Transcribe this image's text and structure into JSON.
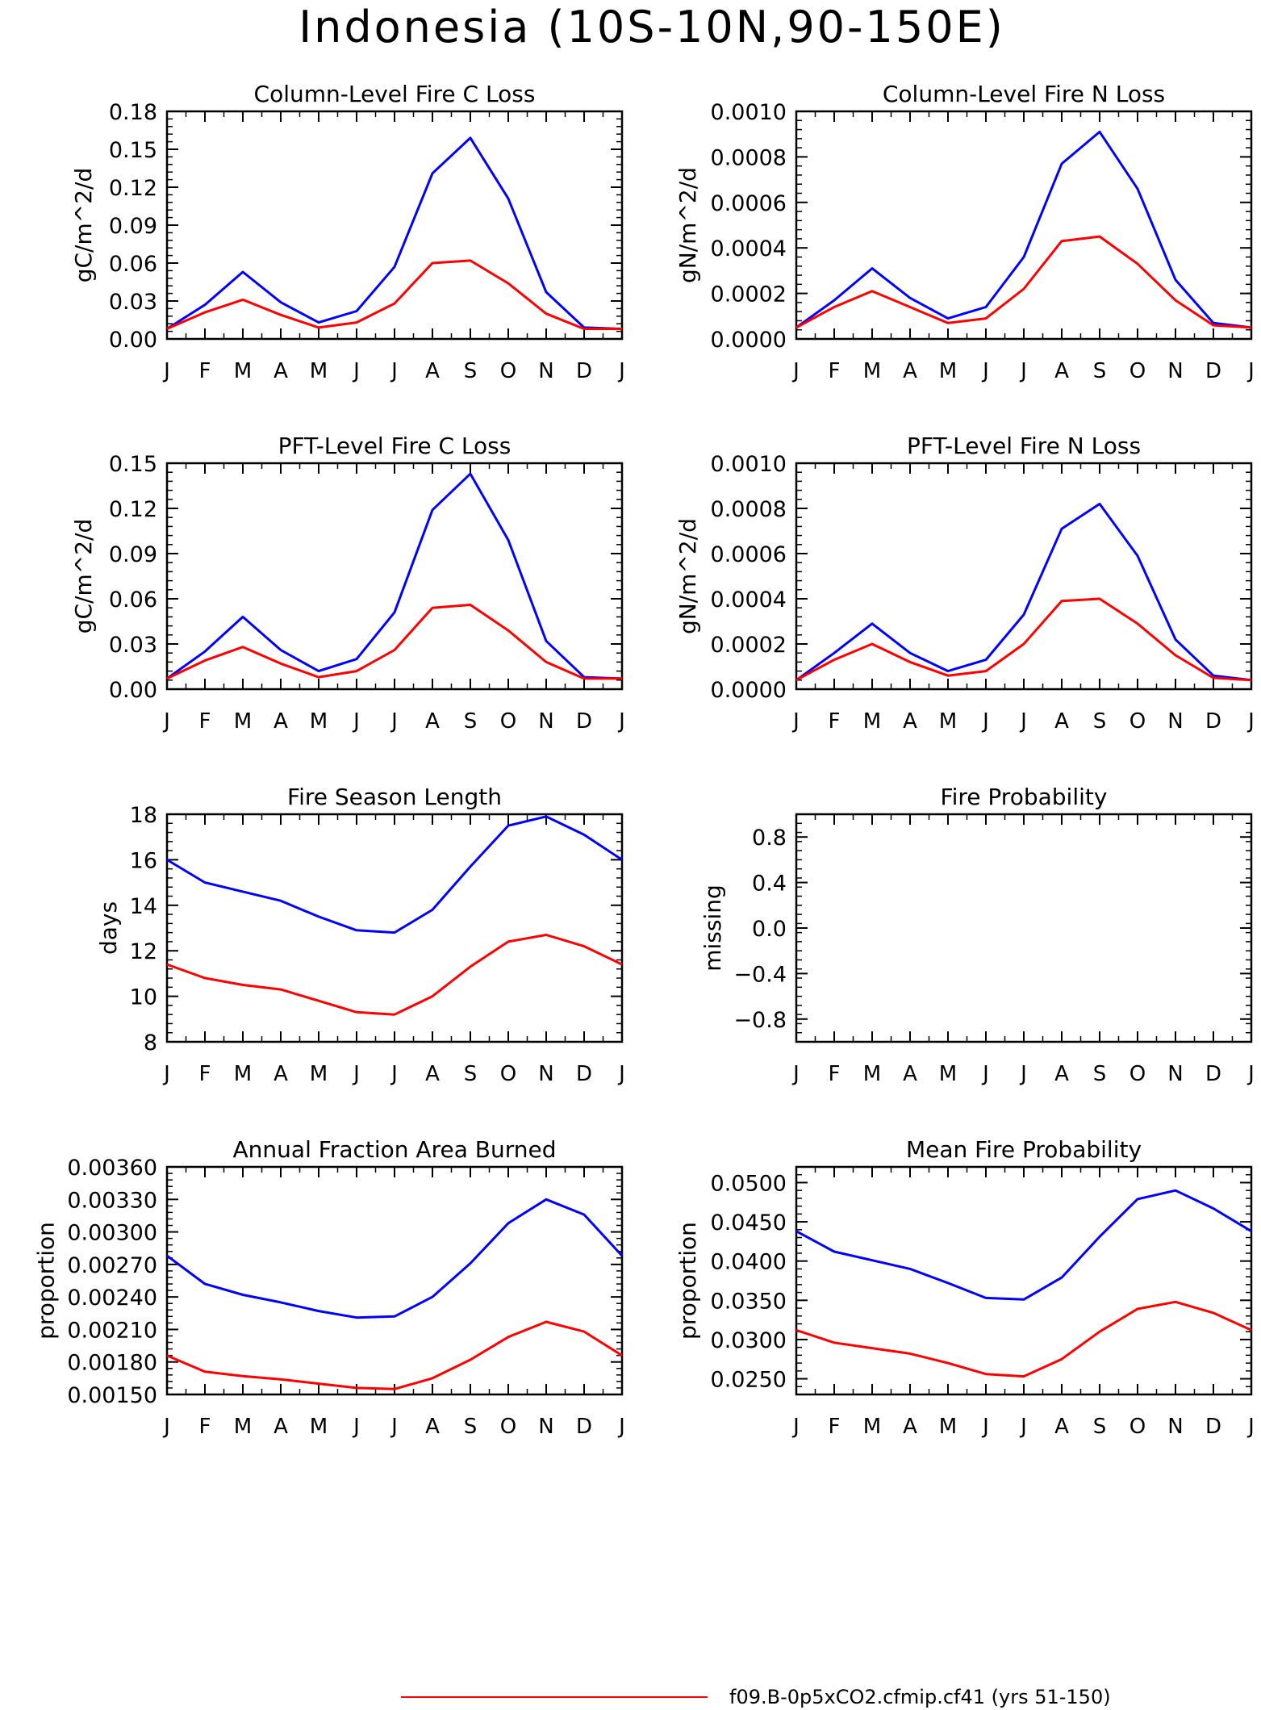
{
  "figure": {
    "title": "Indonesia (10S-10N,90-150E)",
    "legend_label": "f09.B-0p5xCO2.cfmip.cf41 (yrs 51-150)",
    "legend_color": "#ff0000",
    "colors": {
      "series_1": "#0000ff",
      "series_2": "#ff0000",
      "axis": "#000000"
    }
  },
  "chart_data": [
    {
      "type": "line",
      "title": "Column-Level Fire C Loss",
      "xlabel": "",
      "ylabel": "gC/m^2/d",
      "categories": [
        "J",
        "F",
        "M",
        "A",
        "M",
        "J",
        "J",
        "A",
        "S",
        "O",
        "N",
        "D",
        "J"
      ],
      "ylim": [
        0,
        0.18
      ],
      "yticks": [
        0.0,
        0.03,
        0.06,
        0.09,
        0.12,
        0.15,
        0.18
      ],
      "ytick_labels": [
        "0.00",
        "0.03",
        "0.06",
        "0.09",
        "0.12",
        "0.15",
        "0.18"
      ],
      "series": [
        {
          "color": "#0000ff",
          "values": [
            0.008,
            0.027,
            0.053,
            0.029,
            0.013,
            0.022,
            0.057,
            0.131,
            0.159,
            0.111,
            0.037,
            0.009,
            0.008
          ]
        },
        {
          "color": "#ff0000",
          "values": [
            0.008,
            0.021,
            0.031,
            0.019,
            0.009,
            0.013,
            0.028,
            0.06,
            0.062,
            0.044,
            0.02,
            0.008,
            0.008
          ]
        }
      ]
    },
    {
      "type": "line",
      "title": "Column-Level Fire N Loss",
      "xlabel": "",
      "ylabel": "gN/m^2/d",
      "categories": [
        "J",
        "F",
        "M",
        "A",
        "M",
        "J",
        "J",
        "A",
        "S",
        "O",
        "N",
        "D",
        "J"
      ],
      "ylim": [
        0,
        0.001
      ],
      "yticks": [
        0.0,
        0.0002,
        0.0004,
        0.0006,
        0.0008,
        0.001
      ],
      "ytick_labels": [
        "0.0000",
        "0.0002",
        "0.0004",
        "0.0006",
        "0.0008",
        "0.0010"
      ],
      "series": [
        {
          "color": "#0000ff",
          "values": [
            5e-05,
            0.00017,
            0.00031,
            0.00018,
            9e-05,
            0.00014,
            0.00036,
            0.00077,
            0.00091,
            0.00066,
            0.00026,
            7e-05,
            5e-05
          ]
        },
        {
          "color": "#ff0000",
          "values": [
            5e-05,
            0.00014,
            0.00021,
            0.00014,
            7e-05,
            9e-05,
            0.00022,
            0.00043,
            0.00045,
            0.00033,
            0.00017,
            6e-05,
            5e-05
          ]
        }
      ]
    },
    {
      "type": "line",
      "title": "PFT-Level Fire C Loss",
      "xlabel": "",
      "ylabel": "gC/m^2/d",
      "categories": [
        "J",
        "F",
        "M",
        "A",
        "M",
        "J",
        "J",
        "A",
        "S",
        "O",
        "N",
        "D",
        "J"
      ],
      "ylim": [
        0,
        0.15
      ],
      "yticks": [
        0.0,
        0.03,
        0.06,
        0.09,
        0.12,
        0.15
      ],
      "ytick_labels": [
        "0.00",
        "0.03",
        "0.06",
        "0.09",
        "0.12",
        "0.15"
      ],
      "series": [
        {
          "color": "#0000ff",
          "values": [
            0.007,
            0.025,
            0.048,
            0.026,
            0.012,
            0.02,
            0.051,
            0.119,
            0.143,
            0.099,
            0.032,
            0.008,
            0.007
          ]
        },
        {
          "color": "#ff0000",
          "values": [
            0.007,
            0.019,
            0.028,
            0.017,
            0.008,
            0.012,
            0.026,
            0.054,
            0.056,
            0.039,
            0.018,
            0.007,
            0.007
          ]
        }
      ]
    },
    {
      "type": "line",
      "title": "PFT-Level Fire N Loss",
      "xlabel": "",
      "ylabel": "gN/m^2/d",
      "categories": [
        "J",
        "F",
        "M",
        "A",
        "M",
        "J",
        "J",
        "A",
        "S",
        "O",
        "N",
        "D",
        "J"
      ],
      "ylim": [
        0,
        0.001
      ],
      "yticks": [
        0.0,
        0.0002,
        0.0004,
        0.0006,
        0.0008,
        0.001
      ],
      "ytick_labels": [
        "0.0000",
        "0.0002",
        "0.0004",
        "0.0006",
        "0.0008",
        "0.0010"
      ],
      "series": [
        {
          "color": "#0000ff",
          "values": [
            4e-05,
            0.00016,
            0.00029,
            0.00016,
            8e-05,
            0.00013,
            0.00033,
            0.00071,
            0.00082,
            0.00059,
            0.00022,
            6e-05,
            4e-05
          ]
        },
        {
          "color": "#ff0000",
          "values": [
            4e-05,
            0.00013,
            0.0002,
            0.00012,
            6e-05,
            8e-05,
            0.0002,
            0.00039,
            0.0004,
            0.00029,
            0.00015,
            5e-05,
            4e-05
          ]
        }
      ]
    },
    {
      "type": "line",
      "title": "Fire Season Length",
      "xlabel": "",
      "ylabel": "days",
      "categories": [
        "J",
        "F",
        "M",
        "A",
        "M",
        "J",
        "J",
        "A",
        "S",
        "O",
        "N",
        "D",
        "J"
      ],
      "ylim": [
        8,
        18
      ],
      "yticks": [
        8,
        10,
        12,
        14,
        16,
        18
      ],
      "ytick_labels": [
        "8",
        "10",
        "12",
        "14",
        "16",
        "18"
      ],
      "series": [
        {
          "color": "#0000ff",
          "values": [
            16.0,
            15.0,
            14.6,
            14.2,
            13.5,
            12.9,
            12.8,
            13.8,
            15.7,
            17.5,
            17.9,
            17.1,
            16.0
          ]
        },
        {
          "color": "#ff0000",
          "values": [
            11.4,
            10.8,
            10.5,
            10.3,
            9.8,
            9.3,
            9.2,
            10.0,
            11.3,
            12.4,
            12.7,
            12.2,
            11.4
          ]
        }
      ]
    },
    {
      "type": "line",
      "title": "Fire Probability",
      "xlabel": "",
      "ylabel": "missing",
      "categories": [
        "J",
        "F",
        "M",
        "A",
        "M",
        "J",
        "J",
        "A",
        "S",
        "O",
        "N",
        "D",
        "J"
      ],
      "ylim": [
        -1,
        1
      ],
      "yticks": [
        -0.8,
        -0.4,
        0.0,
        0.4,
        0.8
      ],
      "ytick_labels": [
        "−0.8",
        "−0.4",
        "0.0",
        "0.4",
        "0.8"
      ],
      "series": []
    },
    {
      "type": "line",
      "title": "Annual Fraction Area Burned",
      "xlabel": "",
      "ylabel": "proportion",
      "categories": [
        "J",
        "F",
        "M",
        "A",
        "M",
        "J",
        "J",
        "A",
        "S",
        "O",
        "N",
        "D",
        "J"
      ],
      "ylim": [
        0.0015,
        0.0036
      ],
      "yticks": [
        0.0015,
        0.0018,
        0.0021,
        0.0024,
        0.0027,
        0.003,
        0.0033,
        0.0036
      ],
      "ytick_labels": [
        "0.00150",
        "0.00180",
        "0.00210",
        "0.00240",
        "0.00270",
        "0.00300",
        "0.00330",
        "0.00360"
      ],
      "series": [
        {
          "color": "#0000ff",
          "values": [
            0.00278,
            0.00252,
            0.00242,
            0.00235,
            0.00227,
            0.00221,
            0.00222,
            0.0024,
            0.00271,
            0.00308,
            0.0033,
            0.00316,
            0.00278
          ]
        },
        {
          "color": "#ff0000",
          "values": [
            0.00186,
            0.00171,
            0.00167,
            0.00164,
            0.0016,
            0.00156,
            0.00155,
            0.00165,
            0.00182,
            0.00203,
            0.00217,
            0.00208,
            0.00186
          ]
        }
      ]
    },
    {
      "type": "line",
      "title": "Mean Fire Probability",
      "xlabel": "",
      "ylabel": "proportion",
      "categories": [
        "J",
        "F",
        "M",
        "A",
        "M",
        "J",
        "J",
        "A",
        "S",
        "O",
        "N",
        "D",
        "J"
      ],
      "ylim": [
        0.023,
        0.052
      ],
      "yticks": [
        0.025,
        0.03,
        0.035,
        0.04,
        0.045,
        0.05
      ],
      "ytick_labels": [
        "0.0250",
        "0.0300",
        "0.0350",
        "0.0400",
        "0.0450",
        "0.0500"
      ],
      "series": [
        {
          "color": "#0000ff",
          "values": [
            0.0438,
            0.0412,
            0.0401,
            0.039,
            0.0372,
            0.0353,
            0.0351,
            0.0379,
            0.0431,
            0.0479,
            0.049,
            0.0467,
            0.0438
          ]
        },
        {
          "color": "#ff0000",
          "values": [
            0.0312,
            0.0296,
            0.0289,
            0.0282,
            0.027,
            0.0256,
            0.0253,
            0.0275,
            0.031,
            0.0339,
            0.0348,
            0.0334,
            0.0312
          ]
        }
      ]
    }
  ]
}
